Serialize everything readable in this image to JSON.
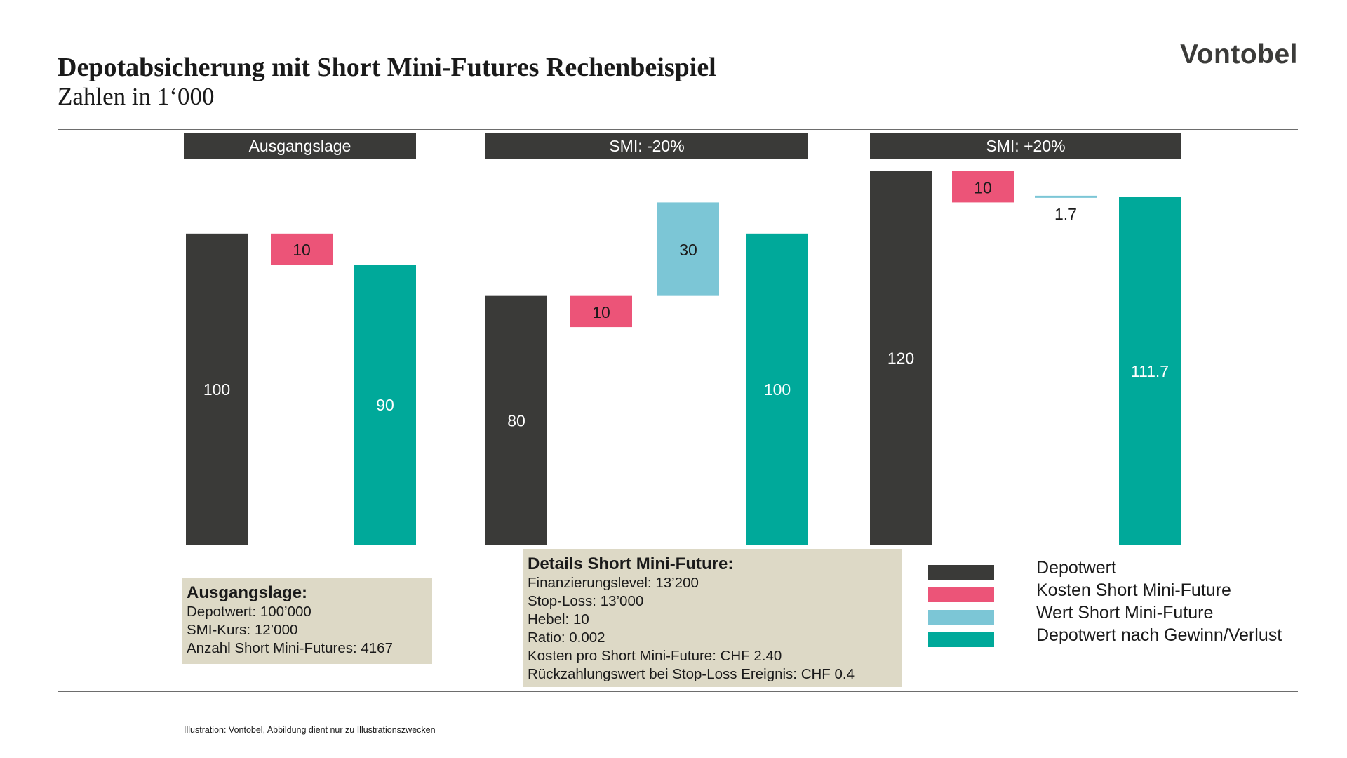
{
  "title": "Depotabsicherung mit Short Mini-Futures Rechenbeispiel",
  "subtitle": "Zahlen in 1‘000",
  "logo": "Vontobel",
  "colors": {
    "depotwert": "#3a3a38",
    "kosten": "#ec5478",
    "wert": "#7cc6d6",
    "depotwert_nach": "#00a99a",
    "header_bg": "#3a3a38",
    "box_bg": "#ddd9c6"
  },
  "chart_data": {
    "type": "bar",
    "ylim": [
      0,
      120
    ],
    "groups": [
      {
        "header": "Ausgangslage",
        "bars": [
          {
            "series": "Depotwert",
            "value": 100,
            "label": "100",
            "base": 0
          },
          {
            "series": "Kosten Short Mini-Future",
            "value": 10,
            "label": "10",
            "base": 90
          },
          {
            "series": "Depotwert nach Gewinn/Verlust",
            "value": 90,
            "label": "90",
            "base": 0
          }
        ]
      },
      {
        "header": "SMI: -20%",
        "bars": [
          {
            "series": "Depotwert",
            "value": 80,
            "label": "80",
            "base": 0
          },
          {
            "series": "Kosten Short Mini-Future",
            "value": 10,
            "label": "10",
            "base": 70
          },
          {
            "series": "Wert Short Mini-Future",
            "value": 30,
            "label": "30",
            "base": 80
          },
          {
            "series": "Depotwert nach Gewinn/Verlust",
            "value": 100,
            "label": "100",
            "base": 0
          }
        ]
      },
      {
        "header": "SMI: +20%",
        "bars": [
          {
            "series": "Depotwert",
            "value": 120,
            "label": "120",
            "base": 0
          },
          {
            "series": "Kosten Short Mini-Future",
            "value": 10,
            "label": "10",
            "base": 110
          },
          {
            "series": "Wert Short Mini-Future",
            "value": 1.7,
            "label": "1.7",
            "base": 110
          },
          {
            "series": "Depotwert nach Gewinn/Verlust",
            "value": 111.7,
            "label": "111.7",
            "base": 0
          }
        ]
      }
    ],
    "legend": [
      {
        "name": "Depotwert",
        "color": "#3a3a38"
      },
      {
        "name": "Kosten Short Mini-Future",
        "color": "#ec5478"
      },
      {
        "name": "Wert Short Mini-Future",
        "color": "#7cc6d6"
      },
      {
        "name": "Depotwert nach Gewinn/Verlust",
        "color": "#00a99a"
      }
    ],
    "legend_position": "bottom-right"
  },
  "box_ausgangslage": {
    "heading": "Ausgangslage:",
    "lines": [
      "Depotwert: 100’000",
      "SMI-Kurs: 12’000",
      "Anzahl Short Mini-Futures: 4167"
    ]
  },
  "box_details": {
    "heading": "Details Short Mini-Future:",
    "lines": [
      "Finanzierungslevel: 13’200",
      "Stop-Loss: 13’000",
      "Hebel: 10",
      "Ratio: 0.002",
      "Kosten pro Short Mini-Future: CHF 2.40",
      "Rückzahlungswert bei Stop-Loss Ereignis: CHF 0.4"
    ]
  },
  "footnote": "Illustration: Vontobel, Abbildung dient nur zu Illustrationszwecken"
}
